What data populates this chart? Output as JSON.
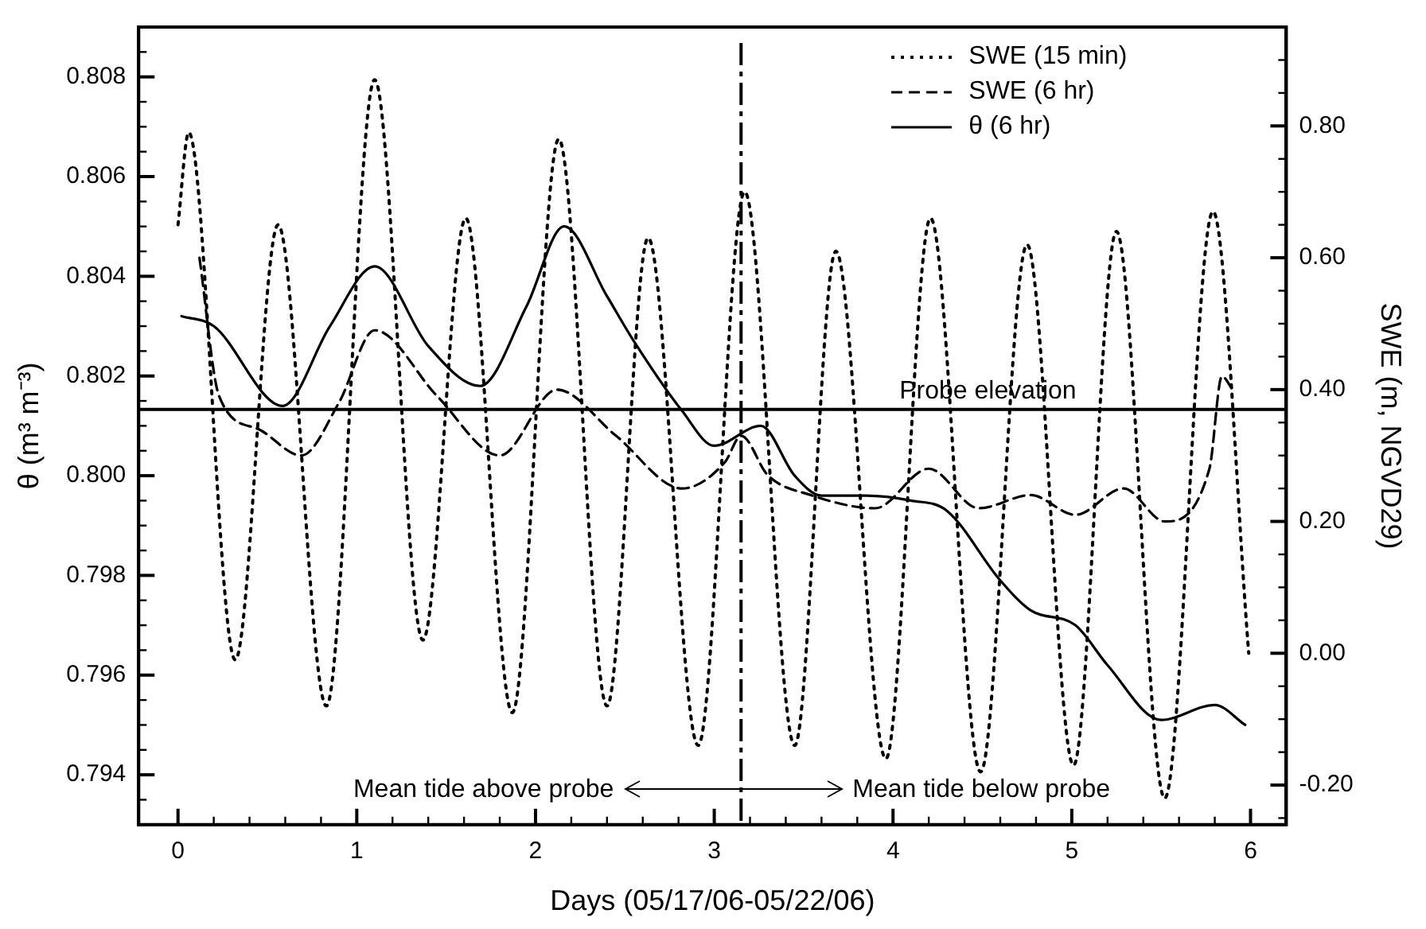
{
  "chart_data": {
    "type": "line",
    "xlabel": "Days (05/17/06-05/22/06)",
    "ylabel": "θ (m³ m⁻³)",
    "y2label": "SWE (m, NGVD29)",
    "xlim": [
      -0.22,
      6.2
    ],
    "ylim": [
      0.793,
      0.809
    ],
    "y2lim": [
      -0.26,
      0.95
    ],
    "xticks": [
      0,
      {
        "value": 0.2,
        "label": null
      },
      {
        "value": 0.4,
        "label": null
      },
      {
        "value": 0.6,
        "label": null
      },
      {
        "value": 0.8,
        "label": null
      },
      1,
      {
        "value": 1.2,
        "label": null
      },
      {
        "value": 1.4,
        "label": null
      },
      {
        "value": 1.6,
        "label": null
      },
      {
        "value": 1.8,
        "label": null
      },
      2,
      {
        "value": 2.2,
        "label": null
      },
      {
        "value": 2.4,
        "label": null
      },
      {
        "value": 2.6,
        "label": null
      },
      {
        "value": 2.8,
        "label": null
      },
      3,
      {
        "value": 3.2,
        "label": null
      },
      {
        "value": 3.4,
        "label": null
      },
      {
        "value": 3.6,
        "label": null
      },
      {
        "value": 3.8,
        "label": null
      },
      4,
      {
        "value": 4.2,
        "label": null
      },
      {
        "value": 4.4,
        "label": null
      },
      {
        "value": 4.6,
        "label": null
      },
      {
        "value": 4.8,
        "label": null
      },
      5,
      {
        "value": 5.2,
        "label": null
      },
      {
        "value": 5.4,
        "label": null
      },
      {
        "value": 5.6,
        "label": null
      },
      {
        "value": 5.8,
        "label": null
      },
      6
    ],
    "yticks": [
      {
        "value": 0.7935,
        "label": null
      },
      {
        "value": 0.794,
        "label": "0.794"
      },
      {
        "value": 0.7945,
        "label": null
      },
      {
        "value": 0.795,
        "label": null
      },
      {
        "value": 0.7955,
        "label": null
      },
      {
        "value": 0.796,
        "label": "0.796"
      },
      {
        "value": 0.7965,
        "label": null
      },
      {
        "value": 0.797,
        "label": null
      },
      {
        "value": 0.7975,
        "label": null
      },
      {
        "value": 0.798,
        "label": "0.798"
      },
      {
        "value": 0.7985,
        "label": null
      },
      {
        "value": 0.799,
        "label": null
      },
      {
        "value": 0.7995,
        "label": null
      },
      {
        "value": 0.8,
        "label": "0.800"
      },
      {
        "value": 0.8005,
        "label": null
      },
      {
        "value": 0.801,
        "label": null
      },
      {
        "value": 0.8015,
        "label": null
      },
      {
        "value": 0.802,
        "label": "0.802"
      },
      {
        "value": 0.8025,
        "label": null
      },
      {
        "value": 0.803,
        "label": null
      },
      {
        "value": 0.8035,
        "label": null
      },
      {
        "value": 0.804,
        "label": "0.804"
      },
      {
        "value": 0.8045,
        "label": null
      },
      {
        "value": 0.805,
        "label": null
      },
      {
        "value": 0.8055,
        "label": null
      },
      {
        "value": 0.806,
        "label": "0.806"
      },
      {
        "value": 0.8065,
        "label": null
      },
      {
        "value": 0.807,
        "label": null
      },
      {
        "value": 0.8075,
        "label": null
      },
      {
        "value": 0.808,
        "label": "0.808"
      },
      {
        "value": 0.8085,
        "label": null
      }
    ],
    "y2ticks": [
      {
        "value": -0.25,
        "label": null
      },
      {
        "value": -0.2,
        "label": "-0.20"
      },
      {
        "value": -0.15,
        "label": null
      },
      {
        "value": -0.1,
        "label": null
      },
      {
        "value": -0.05,
        "label": null
      },
      {
        "value": 0,
        "label": "0.00"
      },
      {
        "value": 0.05,
        "label": null
      },
      {
        "value": 0.1,
        "label": null
      },
      {
        "value": 0.15,
        "label": null
      },
      {
        "value": 0.2,
        "label": "0.20"
      },
      {
        "value": 0.25,
        "label": null
      },
      {
        "value": 0.3,
        "label": null
      },
      {
        "value": 0.35,
        "label": null
      },
      {
        "value": 0.4,
        "label": "0.40"
      },
      {
        "value": 0.45,
        "label": null
      },
      {
        "value": 0.5,
        "label": null
      },
      {
        "value": 0.55,
        "label": null
      },
      {
        "value": 0.6,
        "label": "0.60"
      },
      {
        "value": 0.65,
        "label": null
      },
      {
        "value": 0.7,
        "label": null
      },
      {
        "value": 0.75,
        "label": null
      },
      {
        "value": 0.8,
        "label": "0.80"
      },
      {
        "value": 0.85,
        "label": null
      },
      {
        "value": 0.9,
        "label": null
      }
    ],
    "grid": false,
    "legend": "top right",
    "marker": "none",
    "series": [
      {
        "name": "SWE (15 min)",
        "color": "#000000",
        "axis": "y2",
        "line_style": "dotted",
        "x": [
          0.0,
          0.06,
          0.32,
          0.56,
          0.83,
          1.1,
          1.37,
          1.61,
          1.87,
          2.13,
          2.4,
          2.63,
          2.91,
          3.17,
          3.45,
          3.68,
          3.96,
          4.21,
          4.49,
          4.75,
          5.01,
          5.25,
          5.52,
          5.79,
          5.99
        ],
        "values": [
          0.65,
          0.79,
          -0.01,
          0.65,
          -0.08,
          0.87,
          0.02,
          0.66,
          -0.09,
          0.78,
          -0.08,
          0.63,
          -0.14,
          0.7,
          -0.14,
          0.61,
          -0.16,
          0.66,
          -0.18,
          0.62,
          -0.17,
          0.64,
          -0.22,
          0.67,
          0.0
        ]
      },
      {
        "name": "SWE (6 hr)",
        "color": "#000000",
        "axis": "y2",
        "line_style": "dashed",
        "x": [
          0.12,
          0.23,
          0.45,
          0.69,
          0.9,
          1.1,
          1.45,
          1.8,
          2.12,
          2.45,
          2.82,
          3.06,
          3.15,
          3.3,
          3.54,
          3.9,
          4.2,
          4.48,
          4.77,
          5.02,
          5.29,
          5.52,
          5.77,
          5.84,
          5.9
        ],
        "values": [
          0.6,
          0.39,
          0.34,
          0.3,
          0.38,
          0.49,
          0.39,
          0.3,
          0.4,
          0.33,
          0.25,
          0.29,
          0.33,
          0.27,
          0.24,
          0.22,
          0.28,
          0.22,
          0.24,
          0.21,
          0.25,
          0.2,
          0.28,
          0.42,
          0.4
        ]
      },
      {
        "name": "θ (6 hr)",
        "color": "#000000",
        "axis": "y",
        "line_style": "solid",
        "x": [
          0.02,
          0.2,
          0.585,
          0.85,
          1.1,
          1.4,
          1.69,
          1.95,
          2.16,
          2.4,
          2.55,
          2.82,
          3.0,
          3.26,
          3.45,
          3.6,
          3.85,
          4.1,
          4.3,
          4.6,
          4.77,
          5.02,
          5.2,
          5.5,
          5.8,
          5.97
        ],
        "values": [
          0.8032,
          0.803,
          0.8014,
          0.803,
          0.8042,
          0.8026,
          0.8018,
          0.8034,
          0.805,
          0.8036,
          0.8027,
          0.8013,
          0.8006,
          0.801,
          0.8,
          0.7996,
          0.7996,
          0.7995,
          0.7993,
          0.7979,
          0.7973,
          0.797,
          0.7962,
          0.7951,
          0.7954,
          0.795
        ]
      }
    ],
    "ref_lines": [
      {
        "axis": "y2",
        "value": 0.37,
        "label": "Probe elevation",
        "color": "#000000",
        "line_style": "solid"
      },
      {
        "axis": "x",
        "value": 3.15,
        "color": "#000000",
        "line_style": "dashed"
      }
    ],
    "annotations": [
      "Mean tide above probe",
      "Mean tide below probe"
    ]
  }
}
